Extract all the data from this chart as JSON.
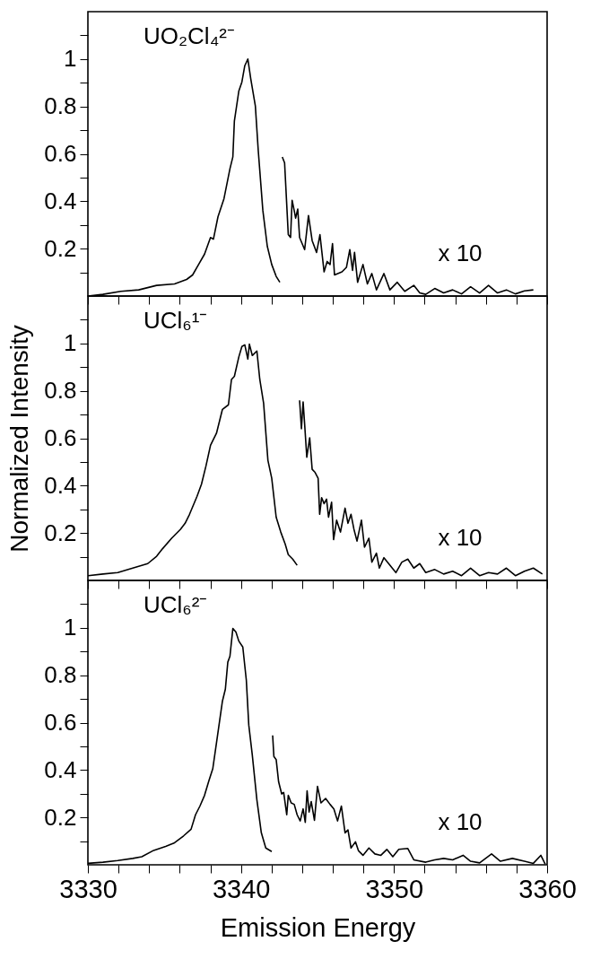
{
  "chart_data": [
    {
      "type": "line",
      "ylim": [
        0,
        1.2
      ],
      "xlim": [
        3330,
        3360
      ],
      "tick_labels": "y",
      "annotations": [
        "UO₂Cl₄²⁻",
        "x 10"
      ],
      "yticks": [
        {
          "value": 0.1,
          "label": null
        },
        0.2,
        {
          "value": 0.3,
          "label": null
        },
        0.4,
        {
          "value": 0.5,
          "label": null
        },
        0.6,
        {
          "value": 0.7,
          "label": null
        },
        0.8,
        {
          "value": 0.9,
          "label": null
        },
        1,
        {
          "value": 1.1,
          "label": null
        }
      ],
      "xticks": [
        3330,
        {
          "value": 3332,
          "label": null
        },
        {
          "value": 3334,
          "label": null
        },
        {
          "value": 3336,
          "label": null
        },
        {
          "value": 3338,
          "label": null
        },
        3340,
        {
          "value": 3342,
          "label": null
        },
        {
          "value": 3344,
          "label": null
        },
        {
          "value": 3346,
          "label": null
        },
        {
          "value": 3348,
          "label": null
        },
        3350,
        {
          "value": 3352,
          "label": null
        },
        {
          "value": 3354,
          "label": null
        },
        {
          "value": 3356,
          "label": null
        },
        {
          "value": 3358,
          "label": null
        },
        3360
      ],
      "series": [
        {
          "color": "#000000",
          "x": [
            3330,
            3330.98,
            3332.15,
            3333.32,
            3334.49,
            3335.66,
            3336.45,
            3336.84,
            3337.23,
            3337.62,
            3338.01,
            3338.2,
            3338.5,
            3338.89,
            3339.28,
            3339.47,
            3339.57,
            3339.86,
            3340.06,
            3340.25,
            3340.45,
            3340.64,
            3340.94,
            3341.13,
            3341.43,
            3341.72,
            3342.01,
            3342.3,
            3342.54
          ],
          "values": [
            0,
            0.007,
            0.02,
            0.026,
            0.045,
            0.051,
            0.07,
            0.089,
            0.133,
            0.177,
            0.247,
            0.24,
            0.335,
            0.411,
            0.537,
            0.587,
            0.739,
            0.865,
            0.903,
            0.972,
            1,
            0.917,
            0.802,
            0.613,
            0.361,
            0.21,
            0.133,
            0.083,
            0.058
          ]
        },
        {
          "color": "#000000",
          "x": [
            3342.7,
            3342.85,
            3343.09,
            3343.24,
            3343.34,
            3343.48,
            3343.57,
            3343.71,
            3343.83,
            3344.16,
            3344.41,
            3344.65,
            3344.94,
            3345.16,
            3345.43,
            3345.63,
            3345.82,
            3345.98,
            3346.11,
            3346.6,
            3346.89,
            3347.11,
            3347.29,
            3347.42,
            3347.62,
            3347.97,
            3348.26,
            3348.55,
            3348.85,
            3349.34,
            3349.73,
            3350.21,
            3350.7,
            3351.29,
            3351.68,
            3352.07,
            3352.66,
            3353.24,
            3353.83,
            3354.41,
            3355,
            3355.59,
            3356.17,
            3356.76,
            3357.34,
            3357.93,
            3358.52,
            3359.1
          ],
          "values": [
            0.587,
            0.562,
            0.259,
            0.247,
            0.404,
            0.36,
            0.329,
            0.367,
            0.247,
            0.196,
            0.34,
            0.234,
            0.184,
            0.259,
            0.102,
            0.146,
            0.133,
            0.221,
            0.089,
            0.102,
            0.121,
            0.196,
            0.108,
            0.184,
            0.058,
            0.133,
            0.051,
            0.095,
            0.026,
            0.095,
            0.026,
            0.058,
            0.02,
            0.045,
            0.013,
            0.007,
            0.032,
            0.013,
            0.026,
            0.009,
            0.039,
            0.013,
            0.045,
            0.013,
            0.026,
            0.009,
            0.022,
            0.026
          ]
        }
      ]
    },
    {
      "type": "line",
      "ylim": [
        0,
        1.2
      ],
      "xlim": [
        3330,
        3360
      ],
      "tick_labels": "y",
      "ylabel": "Normalized Intensity",
      "annotations": [
        "UCl₆¹⁻",
        "x 10"
      ],
      "yticks": [
        {
          "value": 0.1,
          "label": null
        },
        0.2,
        {
          "value": 0.3,
          "label": null
        },
        0.4,
        {
          "value": 0.5,
          "label": null
        },
        0.6,
        {
          "value": 0.7,
          "label": null
        },
        0.8,
        {
          "value": 0.9,
          "label": null
        },
        1,
        {
          "value": 1.1,
          "label": null
        }
      ],
      "xticks": [
        3330,
        {
          "value": 3332,
          "label": null
        },
        {
          "value": 3334,
          "label": null
        },
        {
          "value": 3336,
          "label": null
        },
        {
          "value": 3338,
          "label": null
        },
        3340,
        {
          "value": 3342,
          "label": null
        },
        {
          "value": 3344,
          "label": null
        },
        {
          "value": 3346,
          "label": null
        },
        {
          "value": 3348,
          "label": null
        },
        3350,
        {
          "value": 3352,
          "label": null
        },
        {
          "value": 3354,
          "label": null
        },
        {
          "value": 3356,
          "label": null
        },
        {
          "value": 3358,
          "label": null
        },
        3360
      ],
      "series": [
        {
          "color": "#000000",
          "x": [
            3330,
            3330.98,
            3331.95,
            3332.93,
            3333.91,
            3334.49,
            3334.88,
            3335.47,
            3336.05,
            3336.35,
            3336.64,
            3337.13,
            3337.42,
            3337.71,
            3338.01,
            3338.4,
            3338.79,
            3339.18,
            3339.38,
            3339.57,
            3339.86,
            3340.06,
            3340.25,
            3340.45,
            3340.55,
            3340.74,
            3341.04,
            3341.23,
            3341.48,
            3341.76,
            3342.01,
            3342.3,
            3342.6,
            3342.89,
            3343.09,
            3343.38,
            3343.67
          ],
          "values": [
            0.02,
            0.027,
            0.033,
            0.052,
            0.071,
            0.102,
            0.134,
            0.178,
            0.216,
            0.241,
            0.279,
            0.355,
            0.406,
            0.482,
            0.57,
            0.621,
            0.722,
            0.741,
            0.848,
            0.861,
            0.943,
            0.987,
            0.994,
            0.934,
            0.997,
            0.949,
            0.968,
            0.848,
            0.747,
            0.507,
            0.431,
            0.267,
            0.204,
            0.153,
            0.109,
            0.09,
            0.064
          ]
        },
        {
          "color": "#000000",
          "x": [
            3343.83,
            3343.95,
            3344.06,
            3344.16,
            3344.3,
            3344.49,
            3344.65,
            3344.84,
            3345.04,
            3345.14,
            3345.27,
            3345.43,
            3345.59,
            3345.72,
            3345.92,
            3346.05,
            3346.25,
            3346.5,
            3346.8,
            3346.99,
            3347.19,
            3347.38,
            3347.58,
            3347.87,
            3348.07,
            3348.36,
            3348.55,
            3348.85,
            3349.04,
            3349.34,
            3349.73,
            3350.12,
            3350.51,
            3350.9,
            3351.29,
            3351.68,
            3352.07,
            3352.66,
            3353.24,
            3353.83,
            3354.41,
            3355,
            3355.59,
            3356.17,
            3356.76,
            3357.34,
            3357.93,
            3358.52,
            3359.1,
            3359.69
          ],
          "values": [
            0.76,
            0.64,
            0.753,
            0.659,
            0.52,
            0.602,
            0.469,
            0.456,
            0.431,
            0.279,
            0.349,
            0.324,
            0.343,
            0.267,
            0.33,
            0.172,
            0.254,
            0.204,
            0.305,
            0.241,
            0.279,
            0.216,
            0.166,
            0.254,
            0.14,
            0.178,
            0.077,
            0.115,
            0.052,
            0.096,
            0.064,
            0.033,
            0.077,
            0.09,
            0.052,
            0.071,
            0.033,
            0.046,
            0.027,
            0.039,
            0.02,
            0.052,
            0.02,
            0.033,
            0.027,
            0.052,
            0.02,
            0.039,
            0.052,
            0.027
          ]
        }
      ]
    },
    {
      "type": "line",
      "ylim": [
        0,
        1.2
      ],
      "xlim": [
        3330,
        3360
      ],
      "xlabel": "Emission Energy",
      "annotations": [
        "UCl₆²⁻",
        "x 10"
      ],
      "yticks": [
        {
          "value": 0.1,
          "label": null
        },
        0.2,
        {
          "value": 0.3,
          "label": null
        },
        0.4,
        {
          "value": 0.5,
          "label": null
        },
        0.6,
        {
          "value": 0.7,
          "label": null
        },
        0.8,
        {
          "value": 0.9,
          "label": null
        },
        1,
        {
          "value": 1.1,
          "label": null
        }
      ],
      "xticks": [
        3330,
        {
          "value": 3332,
          "label": null
        },
        {
          "value": 3334,
          "label": null
        },
        {
          "value": 3336,
          "label": null
        },
        {
          "value": 3338,
          "label": null
        },
        3340,
        {
          "value": 3342,
          "label": null
        },
        {
          "value": 3344,
          "label": null
        },
        {
          "value": 3346,
          "label": null
        },
        {
          "value": 3348,
          "label": null
        },
        3350,
        {
          "value": 3352,
          "label": null
        },
        {
          "value": 3354,
          "label": null
        },
        {
          "value": 3356,
          "label": null
        },
        {
          "value": 3358,
          "label": null
        },
        3360
      ],
      "series": [
        {
          "color": "#000000",
          "x": [
            3330,
            3330.98,
            3331.95,
            3332.93,
            3333.52,
            3334.3,
            3335.08,
            3335.66,
            3336.25,
            3336.74,
            3337.03,
            3337.32,
            3337.62,
            3337.91,
            3338.16,
            3338.4,
            3338.79,
            3338.98,
            3339.14,
            3339.28,
            3339.47,
            3339.67,
            3339.86,
            3340.12,
            3340.35,
            3340.51,
            3340.74,
            3341.04,
            3341.33,
            3341.62,
            3342.01
          ],
          "values": [
            0.006,
            0.011,
            0.018,
            0.027,
            0.034,
            0.061,
            0.078,
            0.093,
            0.122,
            0.15,
            0.211,
            0.248,
            0.293,
            0.356,
            0.406,
            0.514,
            0.691,
            0.741,
            0.855,
            0.88,
            0.997,
            0.982,
            0.944,
            0.919,
            0.779,
            0.59,
            0.463,
            0.274,
            0.135,
            0.071,
            0.056
          ]
        },
        {
          "color": "#000000",
          "x": [
            3342.07,
            3342.15,
            3342.3,
            3342.46,
            3342.66,
            3342.79,
            3342.99,
            3343.09,
            3343.28,
            3343.48,
            3343.67,
            3343.87,
            3344.06,
            3344.2,
            3344.32,
            3344.45,
            3344.59,
            3344.8,
            3345,
            3345.23,
            3345.53,
            3345.82,
            3346.07,
            3346.31,
            3346.56,
            3346.8,
            3346.99,
            3347.19,
            3347.48,
            3347.68,
            3347.97,
            3348.36,
            3348.75,
            3349.14,
            3349.53,
            3349.92,
            3350.31,
            3350.9,
            3351.29,
            3352.07,
            3352.66,
            3353.24,
            3353.83,
            3354.51,
            3355,
            3355.59,
            3356.37,
            3356.95,
            3357.73,
            3358.52,
            3359.1,
            3359.59,
            3359.88
          ],
          "values": [
            0.546,
            0.457,
            0.444,
            0.35,
            0.299,
            0.305,
            0.211,
            0.293,
            0.261,
            0.255,
            0.211,
            0.185,
            0.236,
            0.179,
            0.312,
            0.223,
            0.267,
            0.188,
            0.331,
            0.261,
            0.28,
            0.255,
            0.236,
            0.185,
            0.248,
            0.135,
            0.147,
            0.071,
            0.097,
            0.059,
            0.04,
            0.071,
            0.046,
            0.04,
            0.065,
            0.034,
            0.065,
            0.069,
            0.021,
            0.011,
            0.021,
            0.027,
            0.021,
            0.04,
            0.015,
            0.008,
            0.046,
            0.015,
            0.027,
            0.015,
            0.006,
            0.04,
            0.002
          ]
        }
      ]
    }
  ]
}
